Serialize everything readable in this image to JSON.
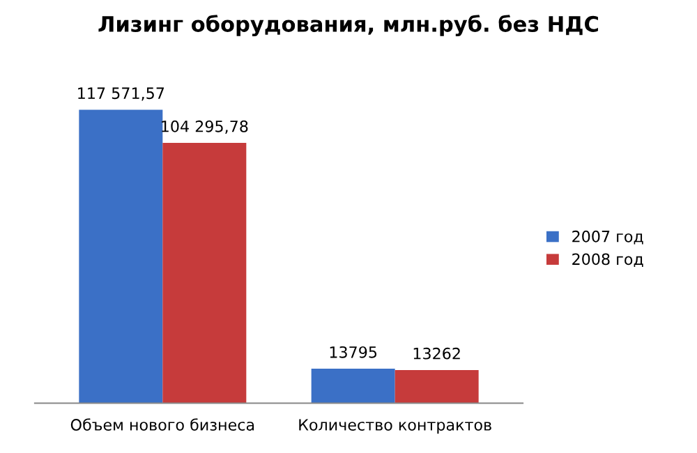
{
  "chart_data": {
    "type": "bar",
    "title": "Лизинг оборудования, млн.руб. без НДС",
    "categories": [
      "Объем нового бизнеса",
      "Количество контрактов"
    ],
    "series": [
      {
        "name": "2007 год",
        "color": "#3b70c6",
        "values": [
          117571.57,
          13795
        ],
        "value_labels": [
          "117 571,57",
          "13795"
        ]
      },
      {
        "name": "2008 год",
        "color": "#c63b3b",
        "values": [
          104295.78,
          13262
        ],
        "value_labels": [
          "104 295,78",
          "13262"
        ]
      }
    ],
    "legend": "right",
    "grid": false
  }
}
